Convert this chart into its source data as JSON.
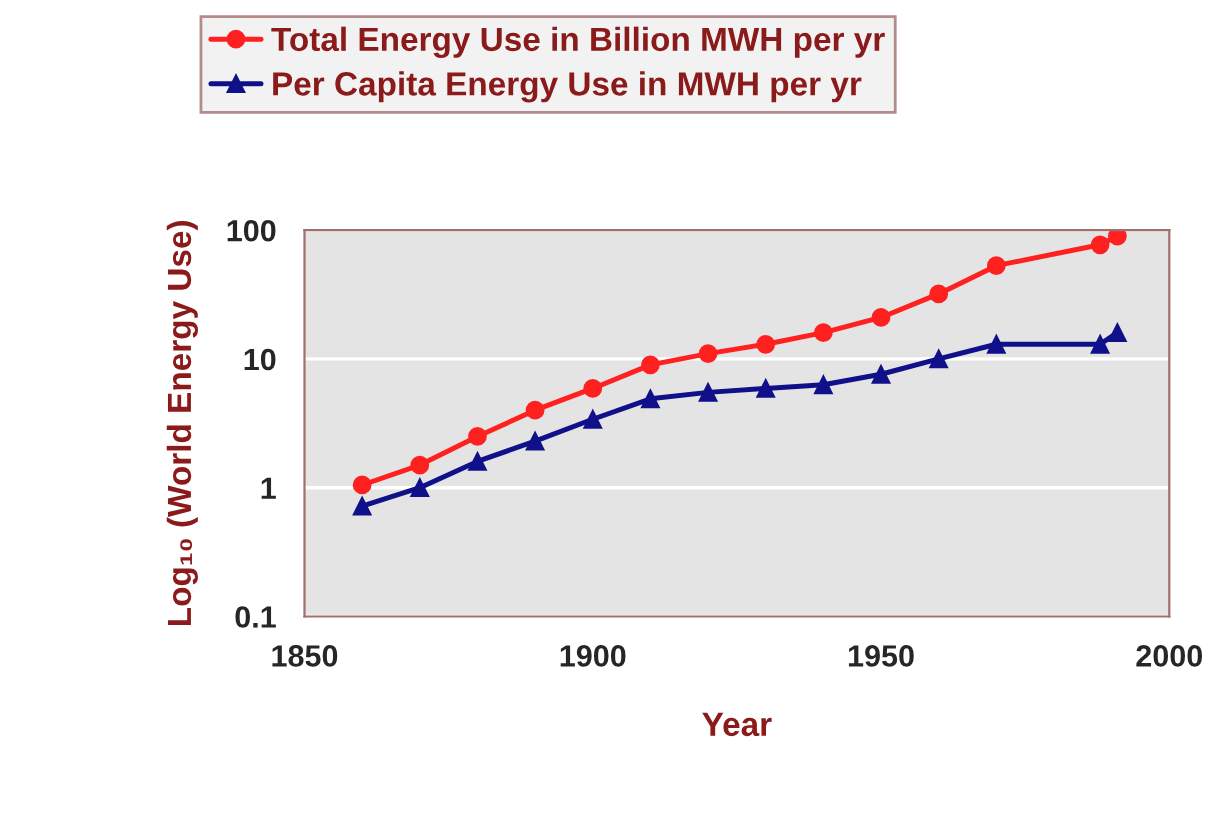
{
  "chart_data": {
    "type": "line",
    "xlabel": "Year",
    "ylabel": "Log₁₀ (World Energy Use)",
    "x": [
      1860,
      1870,
      1880,
      1890,
      1900,
      1910,
      1920,
      1930,
      1940,
      1950,
      1960,
      1970,
      1988,
      1991
    ],
    "series": [
      {
        "name": "Total Energy Use in Billion MWH per yr",
        "color": "#ff2020",
        "marker": "circle",
        "values": [
          1.05,
          1.5,
          2.5,
          4.0,
          5.9,
          9.0,
          11,
          13,
          16,
          21,
          32,
          53,
          77,
          90
        ]
      },
      {
        "name": "Per Capita Energy Use in MWH per yr",
        "color": "#10108a",
        "marker": "triangle",
        "values": [
          0.72,
          1.0,
          1.6,
          2.3,
          3.4,
          4.9,
          5.5,
          5.9,
          6.3,
          7.6,
          10,
          13,
          13,
          16
        ]
      }
    ],
    "log": "y",
    "xlim": [
      1850,
      2000
    ],
    "xticks": [
      1850,
      1900,
      1950,
      2000
    ],
    "ylim": [
      0.1,
      100
    ],
    "yticks": [
      0.1,
      1,
      10,
      100
    ],
    "grid": "y",
    "legend": "top"
  }
}
